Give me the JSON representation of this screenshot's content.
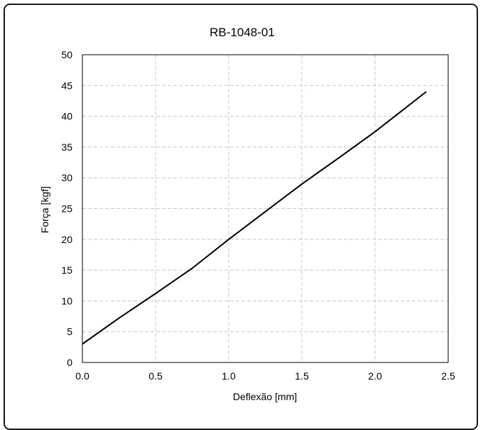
{
  "chart_data": {
    "type": "line",
    "title": "RB-1048-01",
    "xlabel": "Deflexão [mm]",
    "ylabel": "Força [kgf]",
    "xlim": [
      0.0,
      2.5
    ],
    "ylim": [
      0,
      50
    ],
    "x_ticks": [
      "0.0",
      "0.5",
      "1.0",
      "1.5",
      "2.0",
      "2.5"
    ],
    "y_ticks": [
      "0",
      "5",
      "10",
      "15",
      "20",
      "25",
      "30",
      "35",
      "40",
      "45",
      "50"
    ],
    "grid": true,
    "series": [
      {
        "x": [
          0.0,
          0.25,
          0.5,
          0.75,
          1.0,
          1.25,
          1.5,
          1.75,
          2.0,
          2.2,
          2.35
        ],
        "y": [
          3.0,
          7.2,
          11.2,
          15.3,
          20.0,
          24.5,
          29.0,
          33.2,
          37.5,
          41.2,
          44.0
        ]
      }
    ],
    "colors": {
      "line": "#000000",
      "grid": "#c8c8c8",
      "frame": "#1a1a1a"
    }
  }
}
